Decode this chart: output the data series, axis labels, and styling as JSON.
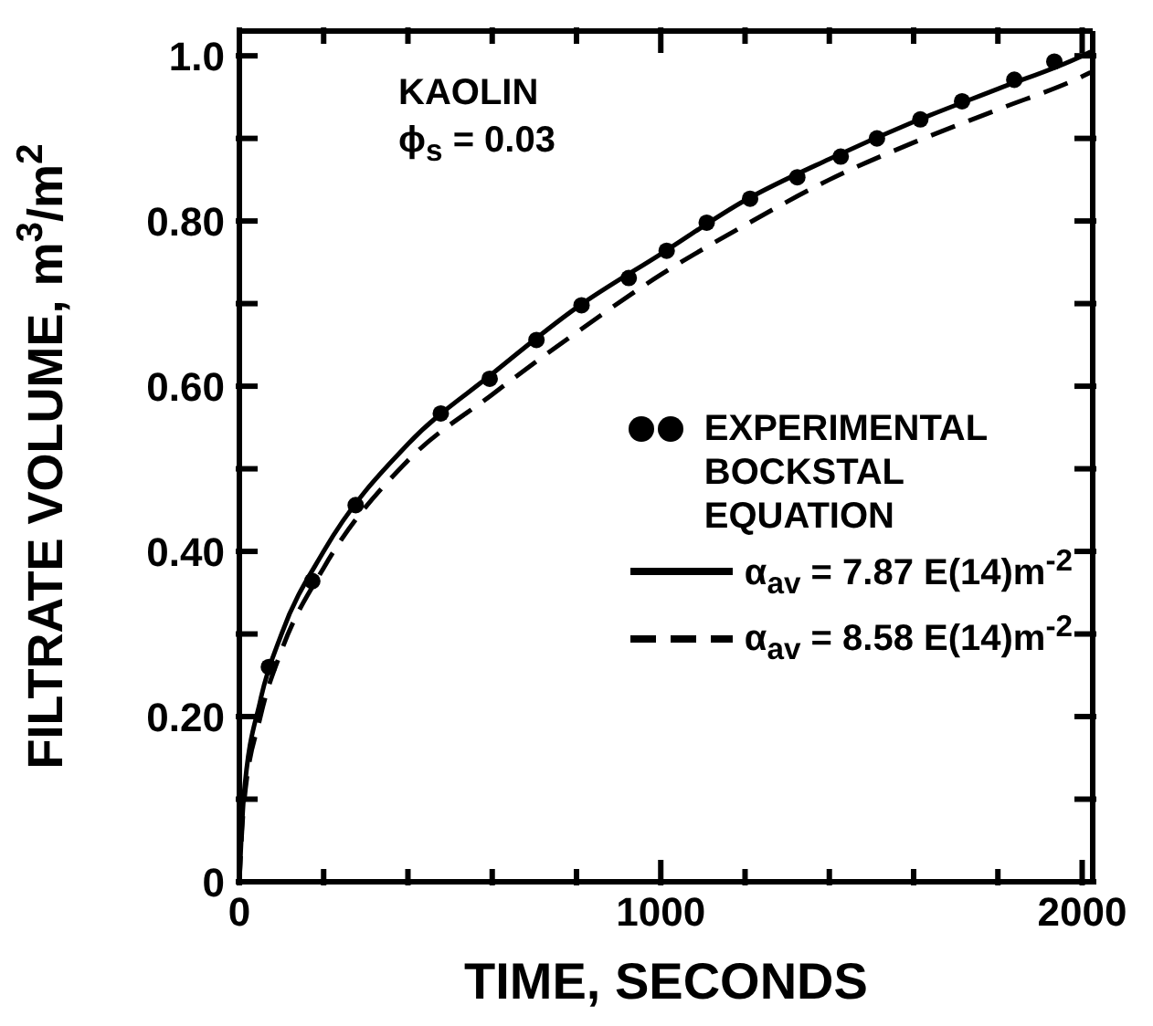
{
  "chart_data": {
    "type": "line",
    "xlabel": "TIME, SECONDS",
    "ylabel": "FILTRATE VOLUME, m$^{3}$/m$^{2}$",
    "annotations": [
      "KAOLIN",
      "ϕ$_{s}$ = 0.03",
      "BOCKSTAL EQUATION"
    ],
    "xlim": [
      0,
      2025
    ],
    "ylim": [
      0,
      1.03
    ],
    "xticks": [
      0,
      {
        "value": 200,
        "label": null
      },
      {
        "value": 400,
        "label": null
      },
      {
        "value": 600,
        "label": null
      },
      {
        "value": 800,
        "label": null
      },
      1000,
      {
        "value": 1200,
        "label": null
      },
      {
        "value": 1400,
        "label": null
      },
      {
        "value": 1600,
        "label": null
      },
      {
        "value": 1800,
        "label": null
      },
      2000
    ],
    "yticks": [
      0,
      {
        "value": 0.1,
        "label": null
      },
      {
        "value": 0.2,
        "label": "0.20"
      },
      {
        "value": 0.3,
        "label": null
      },
      {
        "value": 0.4,
        "label": "0.40"
      },
      {
        "value": 0.5,
        "label": null
      },
      {
        "value": 0.6,
        "label": "0.60"
      },
      {
        "value": 0.7,
        "label": null
      },
      {
        "value": 0.8,
        "label": "0.80"
      },
      {
        "value": 0.9,
        "label": null
      },
      {
        "value": 1,
        "label": "1.0"
      }
    ],
    "grid": false,
    "legend": "right",
    "series": [
      {
        "name": "EXPERIMENTAL",
        "type": "scatter",
        "marker": "circle",
        "color": "#000000",
        "x": [
          70,
          173,
          276,
          478,
          594,
          705,
          812,
          924,
          1014,
          1109,
          1212,
          1324,
          1427,
          1513,
          1616,
          1715,
          1839,
          1934
        ],
        "values": [
          0.26,
          0.364,
          0.456,
          0.567,
          0.609,
          0.656,
          0.698,
          0.731,
          0.764,
          0.798,
          0.827,
          0.853,
          0.878,
          0.9,
          0.923,
          0.945,
          0.971,
          0.993
        ]
      },
      {
        "name": "α$_{av}$ = 7.87 E(14)m$^{-2}$",
        "type": "line",
        "line_style": "solid",
        "color": "#000000",
        "x": [
          0,
          10,
          50,
          100,
          200,
          400,
          600,
          800,
          1000,
          1200,
          1400,
          1600,
          1800,
          2000,
          2020
        ],
        "values": [
          0,
          0.1,
          0.22,
          0.3,
          0.4,
          0.53,
          0.615,
          0.695,
          0.76,
          0.825,
          0.875,
          0.92,
          0.96,
          1.0,
          1.005
        ]
      },
      {
        "name": "α$_{av}$ = 8.58 E(14)m$^{-2}$",
        "type": "line",
        "line_style": "dashed",
        "color": "#000000",
        "x": [
          0,
          10,
          50,
          100,
          200,
          400,
          600,
          800,
          1000,
          1200,
          1400,
          1600,
          1800,
          2000,
          2020
        ],
        "values": [
          0,
          0.09,
          0.2,
          0.28,
          0.38,
          0.51,
          0.59,
          0.665,
          0.735,
          0.795,
          0.85,
          0.895,
          0.935,
          0.975,
          0.98
        ]
      }
    ]
  }
}
